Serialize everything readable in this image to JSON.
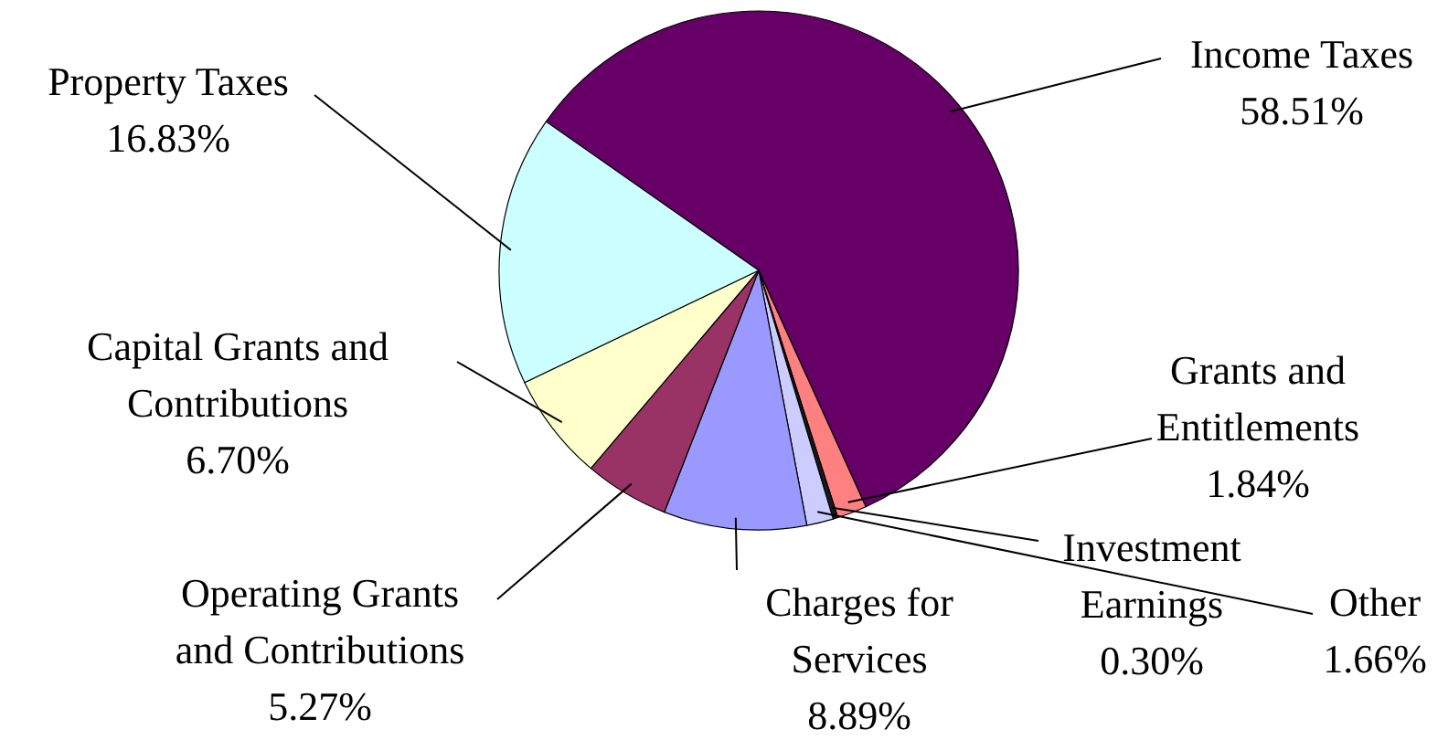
{
  "chart_data": {
    "type": "pie",
    "categories": [
      "Income Taxes",
      "Grants and Entitlements",
      "Investment Earnings",
      "Other",
      "Charges for Services",
      "Operating Grants and Contributions",
      "Capital Grants and Contributions",
      "Property Taxes"
    ],
    "values": [
      58.51,
      1.84,
      0.3,
      1.66,
      8.89,
      5.27,
      6.7,
      16.83
    ],
    "colors": [
      "#660066",
      "#ff8080",
      "#1a1a1a",
      "#ccccff",
      "#9999ff",
      "#993366",
      "#ffffcc",
      "#ccffff"
    ],
    "value_labels": [
      "58.51%",
      "1.84%",
      "0.30%",
      "1.66%",
      "8.89%",
      "5.27%",
      "6.70%",
      "16.83%"
    ]
  }
}
